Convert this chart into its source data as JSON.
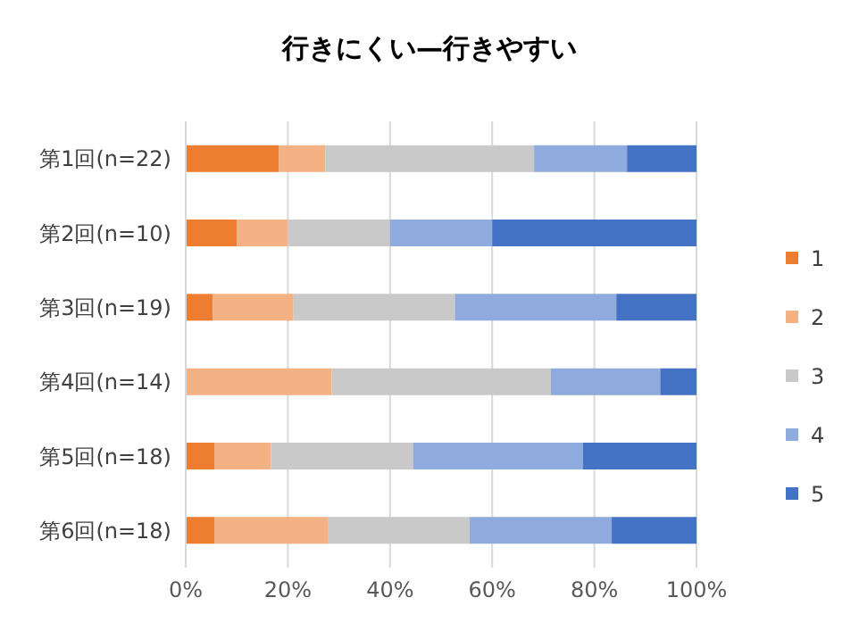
{
  "chart_data": {
    "type": "bar",
    "orientation": "horizontal",
    "stacked": true,
    "title": "行きにくい—行きやすい",
    "categories": [
      "第1回(n=22)",
      "第2回(n=10)",
      "第3回(n=19)",
      "第4回(n=14)",
      "第5回(n=18)",
      "第6回(n=18)"
    ],
    "series": [
      {
        "name": "1",
        "color": "#ed7d31",
        "values": [
          18.2,
          10,
          5.3,
          0,
          5.6,
          5.6
        ]
      },
      {
        "name": "2",
        "color": "#f4b183",
        "values": [
          9.1,
          10,
          15.8,
          28.6,
          11.1,
          22.2
        ]
      },
      {
        "name": "3",
        "color": "#c9c9c9",
        "values": [
          40.9,
          20,
          31.6,
          42.9,
          27.8,
          27.8
        ]
      },
      {
        "name": "4",
        "color": "#8faadc",
        "values": [
          18.2,
          20,
          31.6,
          21.4,
          33.3,
          27.8
        ]
      },
      {
        "name": "5",
        "color": "#4472c4",
        "values": [
          13.6,
          40,
          15.8,
          7.1,
          22.2,
          16.7
        ]
      }
    ],
    "xlim": [
      0,
      100
    ],
    "xticks": [
      {
        "value": 0,
        "label": "0%"
      },
      {
        "value": 20,
        "label": "20%"
      },
      {
        "value": 40,
        "label": "40%"
      },
      {
        "value": 60,
        "label": "60%"
      },
      {
        "value": 80,
        "label": "80%"
      },
      {
        "value": 100,
        "label": "100%"
      }
    ],
    "grid": "x",
    "legend": "right"
  }
}
